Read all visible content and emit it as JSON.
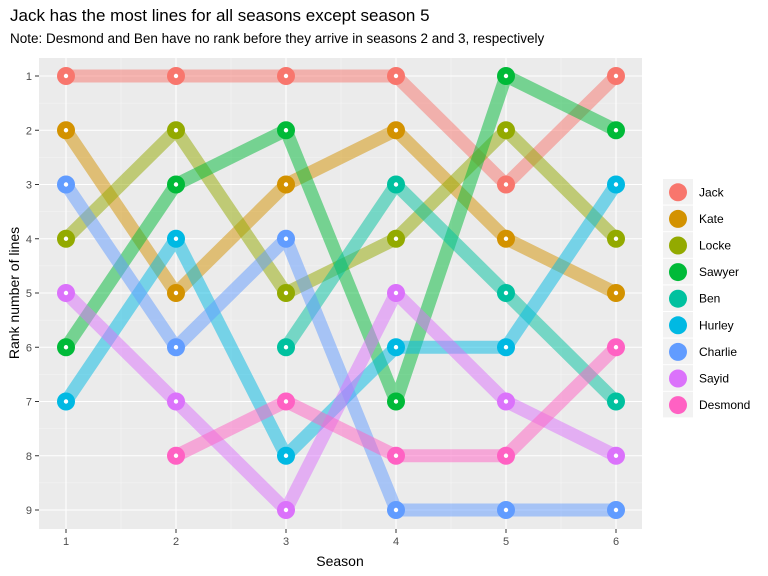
{
  "chart_data": {
    "type": "line",
    "title": "Jack has the most lines for all seasons except season 5",
    "subtitle": "Note: Desmond and Ben have no rank before they arrive in seasons 2 and 3, respectively",
    "xlabel": "Season",
    "ylabel": "Rank number of lines",
    "x": [
      1,
      2,
      3,
      4,
      5,
      6
    ],
    "x_ticks": [
      "1",
      "2",
      "3",
      "4",
      "5",
      "6"
    ],
    "y_ticks": [
      "1",
      "2",
      "3",
      "4",
      "5",
      "6",
      "7",
      "8",
      "9"
    ],
    "y_reversed": true,
    "grid": true,
    "legend_position": "right",
    "series": [
      {
        "name": "Jack",
        "color": "#F8766D",
        "values": [
          1,
          1,
          1,
          1,
          3,
          1
        ]
      },
      {
        "name": "Kate",
        "color": "#D39200",
        "values": [
          2,
          5,
          3,
          2,
          4,
          5
        ]
      },
      {
        "name": "Locke",
        "color": "#93AA00",
        "values": [
          4,
          2,
          5,
          4,
          2,
          4
        ]
      },
      {
        "name": "Sawyer",
        "color": "#00BA38",
        "values": [
          6,
          3,
          2,
          7,
          1,
          2
        ]
      },
      {
        "name": "Ben",
        "color": "#00C19F",
        "values": [
          null,
          null,
          6,
          3,
          5,
          7
        ]
      },
      {
        "name": "Hurley",
        "color": "#00B9E3",
        "values": [
          7,
          4,
          8,
          6,
          6,
          3
        ]
      },
      {
        "name": "Charlie",
        "color": "#619CFF",
        "values": [
          3,
          6,
          4,
          9,
          9,
          9
        ]
      },
      {
        "name": "Sayid",
        "color": "#DB72FB",
        "values": [
          5,
          7,
          9,
          5,
          7,
          8
        ]
      },
      {
        "name": "Desmond",
        "color": "#FF61C3",
        "values": [
          null,
          8,
          7,
          8,
          8,
          6
        ]
      }
    ]
  }
}
